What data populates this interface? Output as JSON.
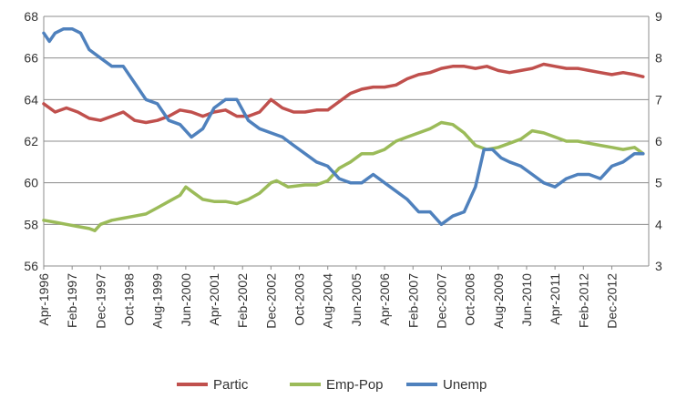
{
  "chart_data": {
    "type": "line",
    "title": "",
    "xlabel": "",
    "ylabel": "",
    "y2label": "",
    "grid": true,
    "legend_position": "bottom",
    "x_range": [
      "Apr-1996",
      "Jan-2014"
    ],
    "ylim": [
      56,
      68
    ],
    "y_ticks": [
      56,
      58,
      60,
      62,
      64,
      66,
      68
    ],
    "y2lim": [
      3,
      9
    ],
    "y2_ticks": [
      3,
      4,
      5,
      6,
      7,
      8,
      9
    ],
    "x_tick_labels": [
      "Apr-1996",
      "Feb-1997",
      "Dec-1997",
      "Oct-1998",
      "Aug-1999",
      "Jun-2000",
      "Apr-2001",
      "Feb-2002",
      "Dec-2002",
      "Oct-2003",
      "Aug-2004",
      "Jun-2005",
      "Apr-2006",
      "Feb-2007",
      "Dec-2007",
      "Oct-2008",
      "Aug-2009",
      "Jun-2010",
      "Apr-2011",
      "Feb-2012",
      "Dec-2012"
    ],
    "series": [
      {
        "name": "Partic",
        "axis": "left",
        "color": "#c0504d",
        "points": [
          [
            "Apr-1996",
            63.8
          ],
          [
            "Aug-1996",
            63.4
          ],
          [
            "Dec-1996",
            63.6
          ],
          [
            "Apr-1997",
            63.4
          ],
          [
            "Aug-1997",
            63.1
          ],
          [
            "Dec-1997",
            63.0
          ],
          [
            "Apr-1998",
            63.2
          ],
          [
            "Aug-1998",
            63.4
          ],
          [
            "Dec-1998",
            63.0
          ],
          [
            "Apr-1999",
            62.9
          ],
          [
            "Aug-1999",
            63.0
          ],
          [
            "Dec-1999",
            63.2
          ],
          [
            "Apr-2000",
            63.5
          ],
          [
            "Aug-2000",
            63.4
          ],
          [
            "Dec-2000",
            63.2
          ],
          [
            "Apr-2001",
            63.4
          ],
          [
            "Aug-2001",
            63.5
          ],
          [
            "Dec-2001",
            63.2
          ],
          [
            "Apr-2002",
            63.2
          ],
          [
            "Aug-2002",
            63.4
          ],
          [
            "Dec-2002",
            64.0
          ],
          [
            "Apr-2003",
            63.6
          ],
          [
            "Aug-2003",
            63.4
          ],
          [
            "Dec-2003",
            63.4
          ],
          [
            "Apr-2004",
            63.5
          ],
          [
            "Aug-2004",
            63.5
          ],
          [
            "Dec-2004",
            63.9
          ],
          [
            "Apr-2005",
            64.3
          ],
          [
            "Aug-2005",
            64.5
          ],
          [
            "Dec-2005",
            64.6
          ],
          [
            "Apr-2006",
            64.6
          ],
          [
            "Aug-2006",
            64.7
          ],
          [
            "Dec-2006",
            65.0
          ],
          [
            "Apr-2007",
            65.2
          ],
          [
            "Aug-2007",
            65.3
          ],
          [
            "Dec-2007",
            65.5
          ],
          [
            "Apr-2008",
            65.6
          ],
          [
            "Aug-2008",
            65.6
          ],
          [
            "Dec-2008",
            65.5
          ],
          [
            "Apr-2009",
            65.6
          ],
          [
            "Aug-2009",
            65.4
          ],
          [
            "Dec-2009",
            65.3
          ],
          [
            "Apr-2010",
            65.4
          ],
          [
            "Aug-2010",
            65.5
          ],
          [
            "Dec-2010",
            65.7
          ],
          [
            "Apr-2011",
            65.6
          ],
          [
            "Aug-2011",
            65.5
          ],
          [
            "Dec-2011",
            65.5
          ],
          [
            "Apr-2012",
            65.4
          ],
          [
            "Aug-2012",
            65.3
          ],
          [
            "Dec-2012",
            65.2
          ],
          [
            "Apr-2013",
            65.3
          ],
          [
            "Aug-2013",
            65.2
          ],
          [
            "Nov-2013",
            65.1
          ]
        ]
      },
      {
        "name": "Emp-Pop",
        "axis": "left",
        "color": "#9bbb59",
        "points": [
          [
            "Apr-1996",
            58.2
          ],
          [
            "Aug-1996",
            58.1
          ],
          [
            "Dec-1996",
            58.0
          ],
          [
            "Apr-1997",
            57.9
          ],
          [
            "Aug-1997",
            57.8
          ],
          [
            "Oct-1997",
            57.7
          ],
          [
            "Dec-1997",
            58.0
          ],
          [
            "Apr-1998",
            58.2
          ],
          [
            "Aug-1998",
            58.3
          ],
          [
            "Dec-1998",
            58.4
          ],
          [
            "Apr-1999",
            58.5
          ],
          [
            "Aug-1999",
            58.8
          ],
          [
            "Dec-1999",
            59.1
          ],
          [
            "Apr-2000",
            59.4
          ],
          [
            "Jun-2000",
            59.8
          ],
          [
            "Aug-2000",
            59.6
          ],
          [
            "Dec-2000",
            59.2
          ],
          [
            "Apr-2001",
            59.1
          ],
          [
            "Aug-2001",
            59.1
          ],
          [
            "Dec-2001",
            59.0
          ],
          [
            "Apr-2002",
            59.2
          ],
          [
            "Aug-2002",
            59.5
          ],
          [
            "Dec-2002",
            60.0
          ],
          [
            "Feb-2003",
            60.1
          ],
          [
            "Jun-2003",
            59.8
          ],
          [
            "Dec-2003",
            59.9
          ],
          [
            "Apr-2004",
            59.9
          ],
          [
            "Aug-2004",
            60.1
          ],
          [
            "Dec-2004",
            60.7
          ],
          [
            "Apr-2005",
            61.0
          ],
          [
            "Aug-2005",
            61.4
          ],
          [
            "Dec-2005",
            61.4
          ],
          [
            "Apr-2006",
            61.6
          ],
          [
            "Aug-2006",
            62.0
          ],
          [
            "Dec-2006",
            62.2
          ],
          [
            "Apr-2007",
            62.4
          ],
          [
            "Aug-2007",
            62.6
          ],
          [
            "Dec-2007",
            62.9
          ],
          [
            "Apr-2008",
            62.8
          ],
          [
            "Aug-2008",
            62.4
          ],
          [
            "Dec-2008",
            61.8
          ],
          [
            "Apr-2009",
            61.6
          ],
          [
            "Aug-2009",
            61.7
          ],
          [
            "Dec-2009",
            61.9
          ],
          [
            "Apr-2010",
            62.1
          ],
          [
            "Aug-2010",
            62.5
          ],
          [
            "Dec-2010",
            62.4
          ],
          [
            "Apr-2011",
            62.2
          ],
          [
            "Aug-2011",
            62.0
          ],
          [
            "Dec-2011",
            62.0
          ],
          [
            "Apr-2012",
            61.9
          ],
          [
            "Aug-2012",
            61.8
          ],
          [
            "Dec-2012",
            61.7
          ],
          [
            "Apr-2013",
            61.6
          ],
          [
            "Aug-2013",
            61.7
          ],
          [
            "Nov-2013",
            61.4
          ]
        ]
      },
      {
        "name": "Unemp",
        "axis": "right",
        "color": "#4f81bd",
        "points": [
          [
            "Apr-1996",
            8.6
          ],
          [
            "Jun-1996",
            8.4
          ],
          [
            "Aug-1996",
            8.6
          ],
          [
            "Nov-1996",
            8.7
          ],
          [
            "Feb-1997",
            8.7
          ],
          [
            "May-1997",
            8.6
          ],
          [
            "Aug-1997",
            8.2
          ],
          [
            "Dec-1997",
            8.0
          ],
          [
            "Apr-1998",
            7.8
          ],
          [
            "Aug-1998",
            7.8
          ],
          [
            "Dec-1998",
            7.4
          ],
          [
            "Apr-1999",
            7.0
          ],
          [
            "Aug-1999",
            6.9
          ],
          [
            "Dec-1999",
            6.5
          ],
          [
            "Apr-2000",
            6.4
          ],
          [
            "Aug-2000",
            6.1
          ],
          [
            "Dec-2000",
            6.3
          ],
          [
            "Apr-2001",
            6.8
          ],
          [
            "Aug-2001",
            7.0
          ],
          [
            "Dec-2001",
            7.0
          ],
          [
            "Apr-2002",
            6.5
          ],
          [
            "Aug-2002",
            6.3
          ],
          [
            "Dec-2002",
            6.2
          ],
          [
            "Apr-2003",
            6.1
          ],
          [
            "Aug-2003",
            5.9
          ],
          [
            "Dec-2003",
            5.7
          ],
          [
            "Apr-2004",
            5.5
          ],
          [
            "Aug-2004",
            5.4
          ],
          [
            "Dec-2004",
            5.1
          ],
          [
            "Apr-2005",
            5.0
          ],
          [
            "Aug-2005",
            5.0
          ],
          [
            "Dec-2005",
            5.2
          ],
          [
            "Apr-2006",
            5.0
          ],
          [
            "Aug-2006",
            4.8
          ],
          [
            "Dec-2006",
            4.6
          ],
          [
            "Apr-2007",
            4.3
          ],
          [
            "Aug-2007",
            4.3
          ],
          [
            "Dec-2007",
            4.0
          ],
          [
            "Apr-2008",
            4.2
          ],
          [
            "Aug-2008",
            4.3
          ],
          [
            "Dec-2008",
            4.9
          ],
          [
            "Mar-2009",
            5.8
          ],
          [
            "Jun-2009",
            5.8
          ],
          [
            "Sep-2009",
            5.6
          ],
          [
            "Dec-2009",
            5.5
          ],
          [
            "Apr-2010",
            5.4
          ],
          [
            "Aug-2010",
            5.2
          ],
          [
            "Dec-2010",
            5.0
          ],
          [
            "Apr-2011",
            4.9
          ],
          [
            "Aug-2011",
            5.1
          ],
          [
            "Dec-2011",
            5.2
          ],
          [
            "Apr-2012",
            5.2
          ],
          [
            "Aug-2012",
            5.1
          ],
          [
            "Dec-2012",
            5.4
          ],
          [
            "Apr-2013",
            5.5
          ],
          [
            "Aug-2013",
            5.7
          ],
          [
            "Nov-2013",
            5.7
          ]
        ]
      }
    ]
  }
}
